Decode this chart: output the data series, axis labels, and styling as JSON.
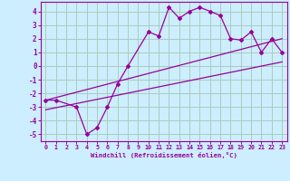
{
  "xlabel": "Windchill (Refroidissement éolien,°C)",
  "background_color": "#cceeff",
  "grid_color": "#aaccbb",
  "line_color": "#990099",
  "xlim": [
    -0.5,
    23.5
  ],
  "ylim": [
    -5.5,
    4.7
  ],
  "xticks": [
    0,
    1,
    2,
    3,
    4,
    5,
    6,
    7,
    8,
    9,
    10,
    11,
    12,
    13,
    14,
    15,
    16,
    17,
    18,
    19,
    20,
    21,
    22,
    23
  ],
  "yticks": [
    -5,
    -4,
    -3,
    -2,
    -1,
    0,
    1,
    2,
    3,
    4
  ],
  "main_x": [
    0,
    1,
    3,
    4,
    5,
    6,
    7,
    8,
    10,
    11,
    12,
    13,
    14,
    15,
    16,
    17,
    18,
    19,
    20,
    21,
    22,
    23
  ],
  "main_y": [
    -2.5,
    -2.5,
    -3.0,
    -5.0,
    -4.5,
    -3.0,
    -1.3,
    0.0,
    2.5,
    2.2,
    4.3,
    3.5,
    4.0,
    4.3,
    4.0,
    3.7,
    2.0,
    1.9,
    2.5,
    1.0,
    2.0,
    1.0
  ],
  "line1_x": [
    0,
    23
  ],
  "line1_y": [
    -3.2,
    0.3
  ],
  "line2_x": [
    0,
    23
  ],
  "line2_y": [
    -2.5,
    2.0
  ]
}
